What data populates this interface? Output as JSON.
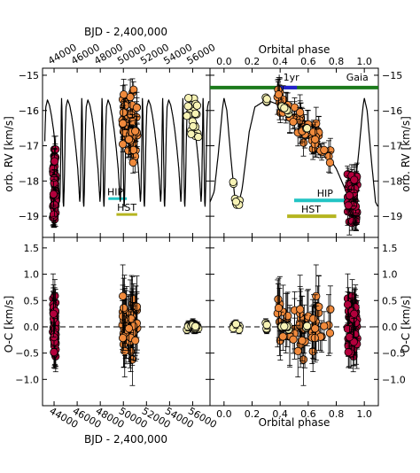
{
  "chart_data": [
    {
      "type": "scatter",
      "panel": "top-left",
      "title": "",
      "xlabel_top": "BJD - 2,400,000",
      "ylabel": "orb. RV [km/s]",
      "xlim": [
        43000,
        57500
      ],
      "ylim": [
        -19.6,
        -14.8
      ],
      "xticks": [
        44000,
        46000,
        48000,
        50000,
        52000,
        54000,
        56000
      ],
      "yticks": [
        -15,
        -16,
        -17,
        -18,
        -19
      ],
      "grid": false,
      "annotations": [
        "HIP",
        "HST"
      ],
      "epoch_clusters": [
        {
          "x": 44000,
          "ymin": -19.2,
          "ymax": -17.1,
          "color": "#b3003c"
        },
        {
          "x": 50500,
          "ymin": -18.0,
          "ymax": -15.0,
          "color": "#f08a3c"
        },
        {
          "x": 55800,
          "ymin": -16.8,
          "ymax": -15.6,
          "color": "#f7f3b5"
        }
      ]
    },
    {
      "type": "scatter",
      "panel": "top-right",
      "xlabel_top": "Orbital phase",
      "ylabel": "orb. RV [km/s]",
      "xlim": [
        -0.1,
        1.1
      ],
      "ylim": [
        -19.6,
        -14.8
      ],
      "xticks": [
        0.0,
        0.2,
        0.4,
        0.6,
        0.8,
        1.0
      ],
      "yticks": [
        -15,
        -16,
        -17,
        -18,
        -19
      ],
      "grid": false,
      "bands": [
        {
          "label": "Gaia",
          "x0": -0.1,
          "x1": 1.1,
          "y": -15.35,
          "color": "#1b7a1b"
        },
        {
          "label": "+1yr",
          "x0": 0.38,
          "x1": 0.52,
          "y": -15.35,
          "color": "#2222cc"
        },
        {
          "label": "HIP",
          "x0": 0.5,
          "x1": 0.95,
          "y": -18.55,
          "color": "#22c4c4"
        },
        {
          "label": "HST",
          "x0": 0.45,
          "x1": 0.8,
          "y": -19.0,
          "color": "#b5b520"
        }
      ]
    },
    {
      "type": "scatter",
      "panel": "bottom-left",
      "xlabel": "BJD - 2,400,000",
      "ylabel": "O-C [km/s]",
      "xlim": [
        43000,
        57500
      ],
      "ylim": [
        -1.5,
        1.7
      ],
      "xticks": [
        44000,
        46000,
        48000,
        50000,
        52000,
        54000,
        56000
      ],
      "yticks": [
        1.5,
        1.0,
        0.5,
        0.0,
        -0.5,
        -1.0
      ],
      "grid": false,
      "zero_line": 0.0
    },
    {
      "type": "scatter",
      "panel": "bottom-right",
      "xlabel": "Orbital phase",
      "ylabel": "O-C [km/s]",
      "xlim": [
        -0.1,
        1.1
      ],
      "ylim": [
        -1.5,
        1.7
      ],
      "xticks": [
        0.0,
        0.2,
        0.4,
        0.6,
        0.8,
        1.0
      ],
      "yticks": [
        1.5,
        1.0,
        0.5,
        0.0,
        -0.5,
        -1.0
      ],
      "grid": false,
      "zero_line": 0.0
    }
  ],
  "colors": {
    "early": "#b3003c",
    "mid": "#f08a3c",
    "late": "#f7f3b5",
    "axis": "#000000"
  }
}
